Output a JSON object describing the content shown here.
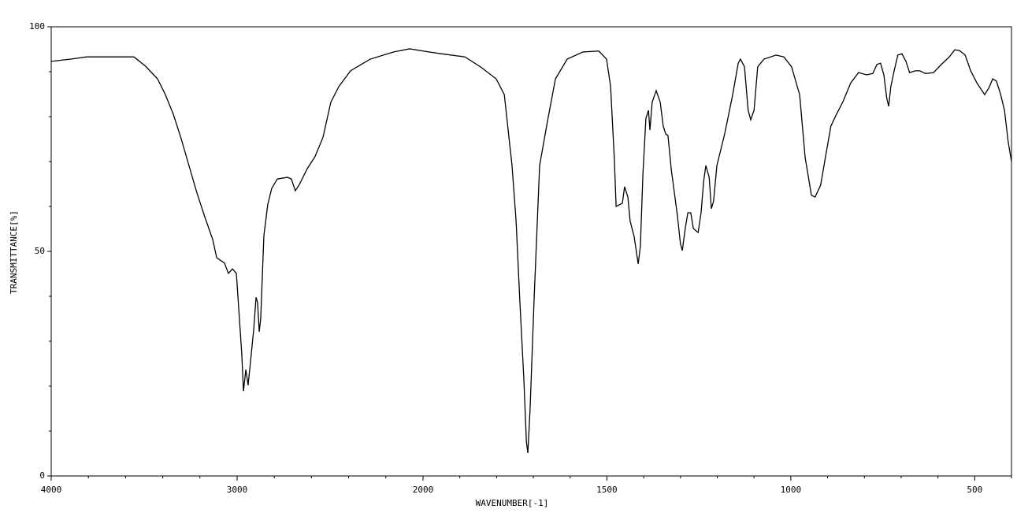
{
  "chart_data": {
    "type": "line",
    "xlabel": "WAVENUMBER[-1]",
    "ylabel": "TRANSMITTANCE[%]",
    "color": "#000000",
    "xlim": [
      4000,
      400
    ],
    "x_scale_break": 2000,
    "xticks": [
      4000,
      3000,
      2000,
      1500,
      1000,
      500
    ],
    "xminorticks": [
      3800,
      3600,
      3400,
      3200,
      2800,
      2600,
      2400,
      2200,
      1900,
      1800,
      1700,
      1600,
      1400,
      1300,
      1200,
      1100,
      900,
      800,
      700,
      600,
      400
    ],
    "ylim": [
      0,
      100
    ],
    "yticks": [
      0,
      50,
      100
    ],
    "yminorticks": [
      10,
      20,
      30,
      40,
      60,
      70,
      80,
      90
    ],
    "x": [
      4000,
      3894,
      3809,
      3555,
      3492,
      3428,
      3386,
      3343,
      3301,
      3259,
      3216,
      3174,
      3131,
      3110,
      3068,
      3047,
      3025,
      3004,
      2992,
      2975,
      2966,
      2953,
      2941,
      2928,
      2911,
      2898,
      2890,
      2881,
      2873,
      2856,
      2835,
      2814,
      2784,
      2729,
      2708,
      2687,
      2665,
      2623,
      2581,
      2538,
      2496,
      2453,
      2390,
      2284,
      2157,
      2072,
      2000,
      1951,
      1886,
      1844,
      1801,
      1779,
      1758,
      1747,
      1737,
      1726,
      1719,
      1715,
      1709,
      1698,
      1683,
      1662,
      1640,
      1608,
      1565,
      1522,
      1501,
      1490,
      1480,
      1475,
      1458,
      1452,
      1443,
      1437,
      1426,
      1415,
      1409,
      1402,
      1394,
      1387,
      1383,
      1377,
      1366,
      1355,
      1347,
      1340,
      1334,
      1325,
      1315,
      1308,
      1300,
      1295,
      1287,
      1280,
      1272,
      1265,
      1252,
      1244,
      1237,
      1231,
      1222,
      1216,
      1210,
      1201,
      1180,
      1158,
      1143,
      1137,
      1126,
      1116,
      1109,
      1100,
      1090,
      1073,
      1040,
      1019,
      998,
      976,
      961,
      944,
      934,
      919,
      906,
      891,
      876,
      859,
      837,
      816,
      794,
      777,
      766,
      756,
      747,
      739,
      734,
      728,
      719,
      709,
      698,
      687,
      677,
      662,
      649,
      634,
      612,
      591,
      569,
      554,
      541,
      526,
      511,
      494,
      473,
      462,
      451,
      441,
      430,
      419,
      409,
      400
    ],
    "values": [
      92.3,
      92.8,
      93.3,
      93.3,
      91.2,
      88.4,
      84.9,
      80.5,
      75.1,
      69.1,
      63.0,
      57.7,
      52.6,
      48.6,
      47.4,
      45.1,
      46.1,
      45.1,
      37.7,
      27.2,
      18.9,
      23.7,
      20.2,
      25.4,
      32.5,
      39.8,
      38.6,
      32.1,
      35.1,
      53.5,
      60.5,
      64.0,
      66.1,
      66.5,
      66.1,
      63.5,
      64.9,
      68.4,
      71.1,
      75.4,
      83.2,
      86.7,
      90.2,
      92.8,
      94.4,
      95.1,
      94.6,
      94.0,
      93.3,
      91.1,
      88.4,
      84.9,
      69.1,
      56.8,
      39.3,
      21.8,
      7.7,
      5.1,
      14.7,
      39.3,
      69.1,
      78.8,
      88.4,
      92.8,
      94.4,
      94.6,
      92.8,
      86.7,
      70.9,
      60.0,
      60.7,
      64.4,
      62.1,
      56.8,
      53.3,
      47.2,
      51.2,
      67.4,
      79.6,
      81.4,
      77.0,
      83.2,
      85.8,
      83.2,
      77.9,
      76.1,
      75.8,
      68.2,
      62.1,
      57.7,
      51.6,
      50.2,
      55.1,
      58.6,
      58.6,
      55.1,
      54.2,
      58.6,
      65.6,
      69.1,
      66.5,
      59.5,
      61.2,
      69.1,
      76.1,
      84.9,
      91.9,
      92.8,
      91.1,
      81.4,
      79.3,
      81.4,
      91.1,
      92.8,
      93.7,
      93.3,
      91.1,
      84.9,
      70.9,
      62.5,
      62.1,
      64.7,
      70.9,
      77.9,
      80.5,
      83.2,
      87.5,
      89.8,
      89.3,
      89.6,
      91.6,
      91.9,
      89.3,
      84.0,
      82.3,
      86.7,
      90.2,
      93.7,
      94.0,
      92.3,
      89.8,
      90.2,
      90.2,
      89.6,
      89.8,
      91.6,
      93.3,
      94.9,
      94.7,
      93.7,
      90.2,
      87.5,
      84.9,
      86.3,
      88.4,
      87.9,
      85.1,
      81.4,
      74.4,
      70.0
    ]
  }
}
